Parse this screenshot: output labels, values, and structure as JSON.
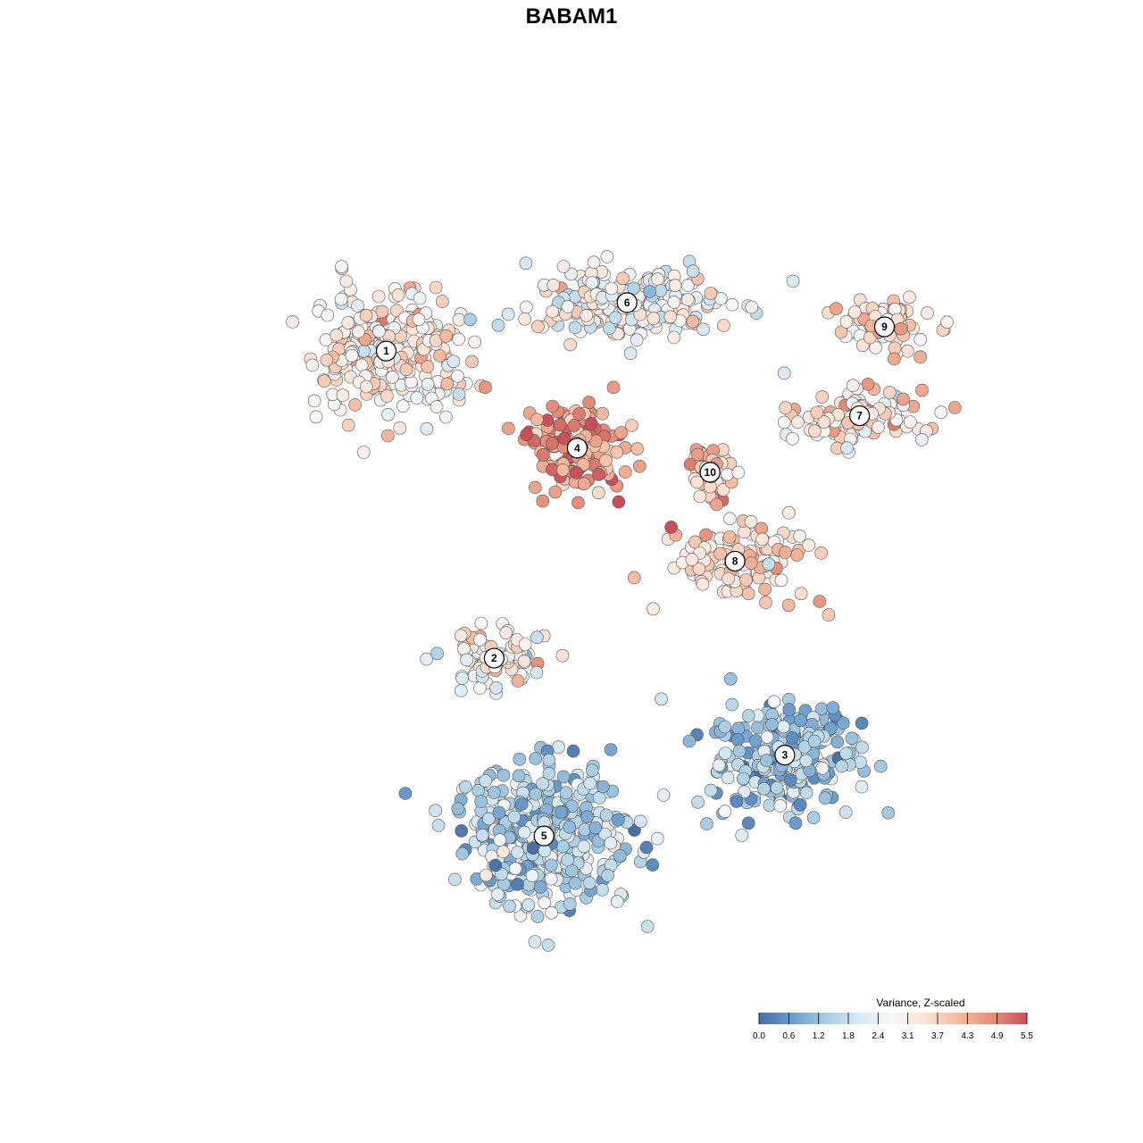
{
  "chart_data": {
    "type": "scatter",
    "title": "BABAM1",
    "xlabel": "",
    "ylabel": "",
    "grid": false,
    "legend": {
      "title": "Variance, Z-scaled",
      "placement": "bottom-right",
      "ticks": [
        "0.0",
        "0.6",
        "1.2",
        "1.8",
        "2.4",
        "3.1",
        "3.7",
        "4.3",
        "4.9",
        "5.5"
      ],
      "range": [
        0.0,
        5.5
      ],
      "colors": [
        "#4a6fa5",
        "#6a9ccc",
        "#a8cce2",
        "#d8e9f2",
        "#f7f7f7",
        "#fbe0d2",
        "#f4b89e",
        "#e48d78",
        "#c9505a"
      ]
    },
    "xlim": [
      -50,
      50
    ],
    "ylim": [
      -50,
      50
    ],
    "clusters": [
      {
        "label": "1",
        "x": -25,
        "y": 27,
        "value": 3.1
      },
      {
        "label": "2",
        "x": -12,
        "y": -11,
        "value": 2.8
      },
      {
        "label": "3",
        "x": 23,
        "y": -23,
        "value": 1.4
      },
      {
        "label": "4",
        "x": -2,
        "y": 15,
        "value": 4.6
      },
      {
        "label": "5",
        "x": -6,
        "y": -33,
        "value": 1.6
      },
      {
        "label": "6",
        "x": 4,
        "y": 33,
        "value": 2.7
      },
      {
        "label": "7",
        "x": 32,
        "y": 19,
        "value": 3.3
      },
      {
        "label": "8",
        "x": 17,
        "y": 1,
        "value": 3.6
      },
      {
        "label": "9",
        "x": 35,
        "y": 30,
        "value": 3.5
      },
      {
        "label": "10",
        "x": 14,
        "y": 12,
        "value": 3.7
      }
    ]
  }
}
